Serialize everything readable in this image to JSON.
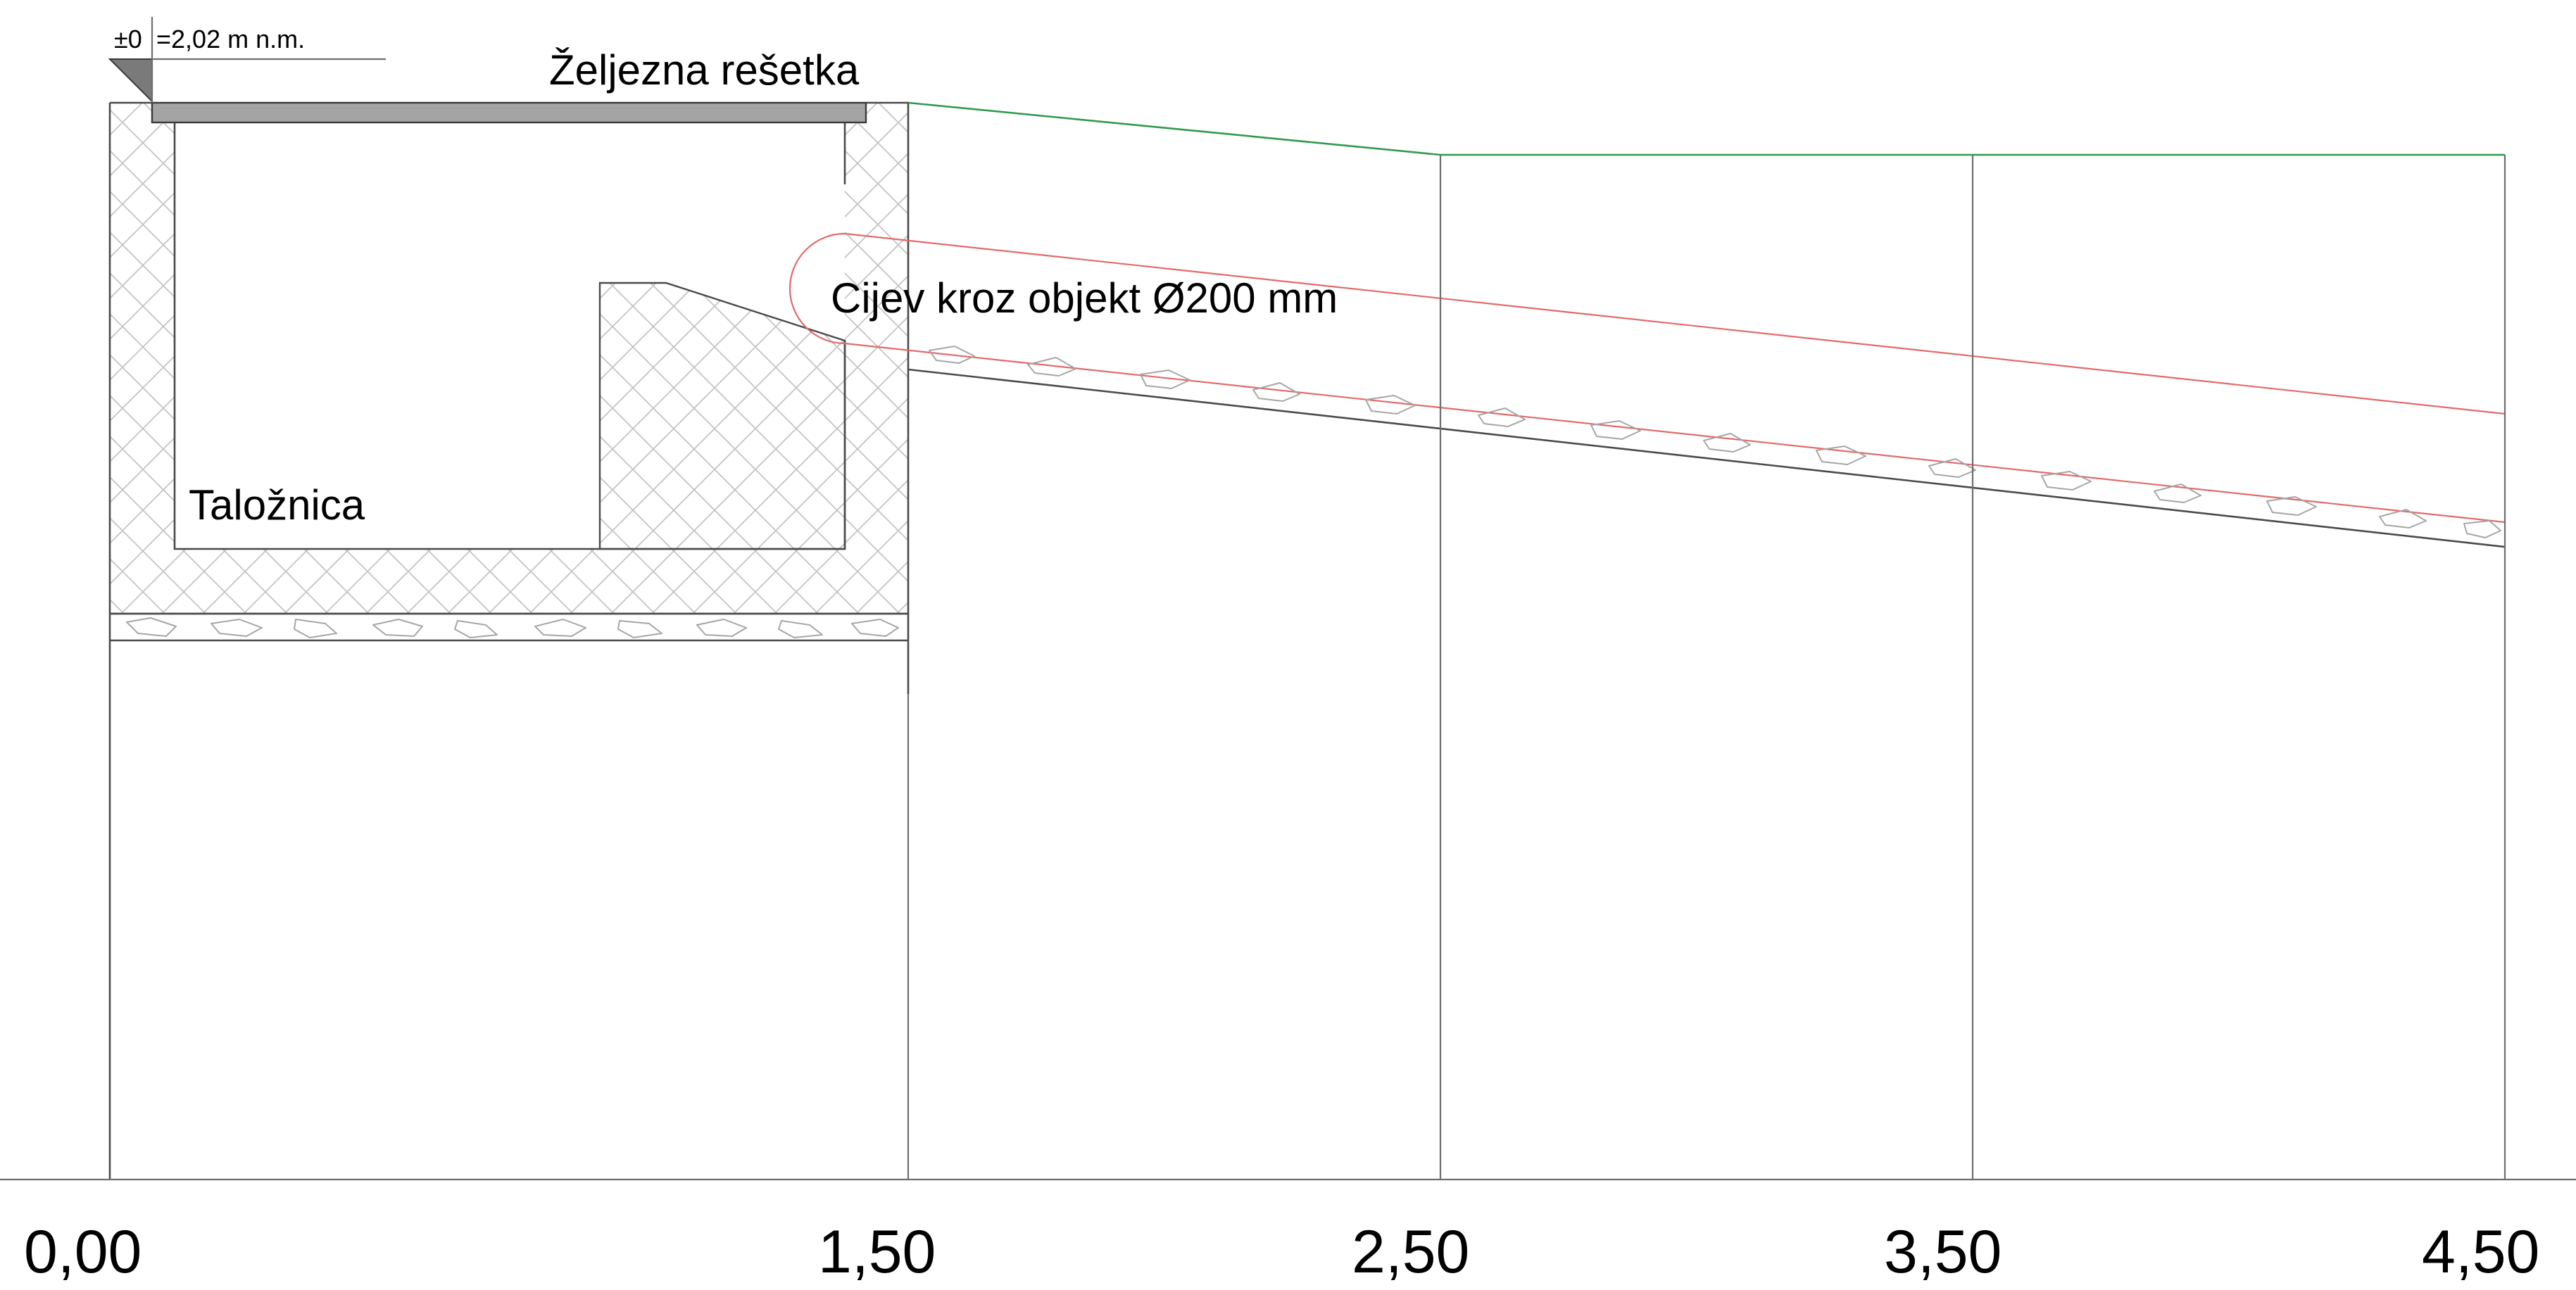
{
  "elevation_marker": {
    "zero_label": "±0",
    "value_label": "=2,02 m n.m."
  },
  "labels": {
    "grate": "Željezna rešetka",
    "pipe": "Cijev kroz objekt Ø200 mm",
    "tank": "Taložnica"
  },
  "stations": [
    "0,00",
    "1,50",
    "2,50",
    "3,50",
    "4,50"
  ],
  "colors": {
    "terrain_line": "#2f9a4f",
    "pipe_line": "#e26a6a",
    "grate_fill": "#a4a4a4",
    "structure_lines": "#4a4a4a"
  }
}
